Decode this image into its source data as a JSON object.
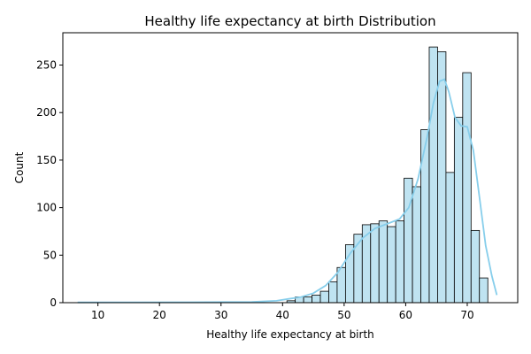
{
  "chart_data": {
    "type": "bar",
    "title": "Healthy life expectancy at birth Distribution",
    "xlabel": "Healthy life expectancy at birth",
    "ylabel": "Count",
    "xlim": [
      4.3,
      78.2
    ],
    "ylim": [
      0,
      284
    ],
    "x_ticks": [
      10,
      20,
      30,
      40,
      50,
      60,
      70
    ],
    "y_ticks": [
      0,
      50,
      100,
      150,
      200,
      250
    ],
    "grid": false,
    "bin_width": 1.36,
    "bins": [
      {
        "x0": 40.7,
        "count": 2
      },
      {
        "x0": 42.06,
        "count": 6
      },
      {
        "x0": 43.42,
        "count": 6
      },
      {
        "x0": 44.78,
        "count": 8
      },
      {
        "x0": 46.14,
        "count": 12
      },
      {
        "x0": 47.5,
        "count": 22
      },
      {
        "x0": 48.86,
        "count": 37
      },
      {
        "x0": 50.22,
        "count": 61
      },
      {
        "x0": 51.58,
        "count": 72
      },
      {
        "x0": 52.94,
        "count": 82
      },
      {
        "x0": 54.3,
        "count": 83
      },
      {
        "x0": 55.66,
        "count": 86
      },
      {
        "x0": 57.02,
        "count": 80
      },
      {
        "x0": 58.38,
        "count": 86
      },
      {
        "x0": 59.74,
        "count": 131
      },
      {
        "x0": 61.1,
        "count": 122
      },
      {
        "x0": 62.46,
        "count": 182
      },
      {
        "x0": 63.82,
        "count": 269
      },
      {
        "x0": 65.18,
        "count": 264
      },
      {
        "x0": 66.54,
        "count": 137
      },
      {
        "x0": 67.9,
        "count": 195
      },
      {
        "x0": 69.26,
        "count": 242
      },
      {
        "x0": 70.62,
        "count": 76
      },
      {
        "x0": 71.98,
        "count": 26
      }
    ],
    "kde": [
      [
        6.7,
        0.3
      ],
      [
        15,
        0.4
      ],
      [
        25,
        0.5
      ],
      [
        35,
        0.7
      ],
      [
        39,
        2
      ],
      [
        41,
        4
      ],
      [
        43,
        6
      ],
      [
        45,
        10
      ],
      [
        47,
        18
      ],
      [
        49,
        32
      ],
      [
        51,
        52
      ],
      [
        53,
        68
      ],
      [
        55,
        78
      ],
      [
        57,
        83
      ],
      [
        59,
        88
      ],
      [
        60.5,
        100
      ],
      [
        62,
        130
      ],
      [
        63.5,
        175
      ],
      [
        64.5,
        210
      ],
      [
        65.5,
        233
      ],
      [
        66.3,
        235
      ],
      [
        67,
        222
      ],
      [
        68,
        195
      ],
      [
        69,
        186
      ],
      [
        70,
        185
      ],
      [
        71,
        160
      ],
      [
        72,
        110
      ],
      [
        73,
        60
      ],
      [
        74,
        28
      ],
      [
        74.8,
        8
      ]
    ],
    "colors": {
      "bar_fill": "#bfe3f1",
      "bar_edge": "#000000",
      "kde_line": "#87ceeb"
    }
  }
}
